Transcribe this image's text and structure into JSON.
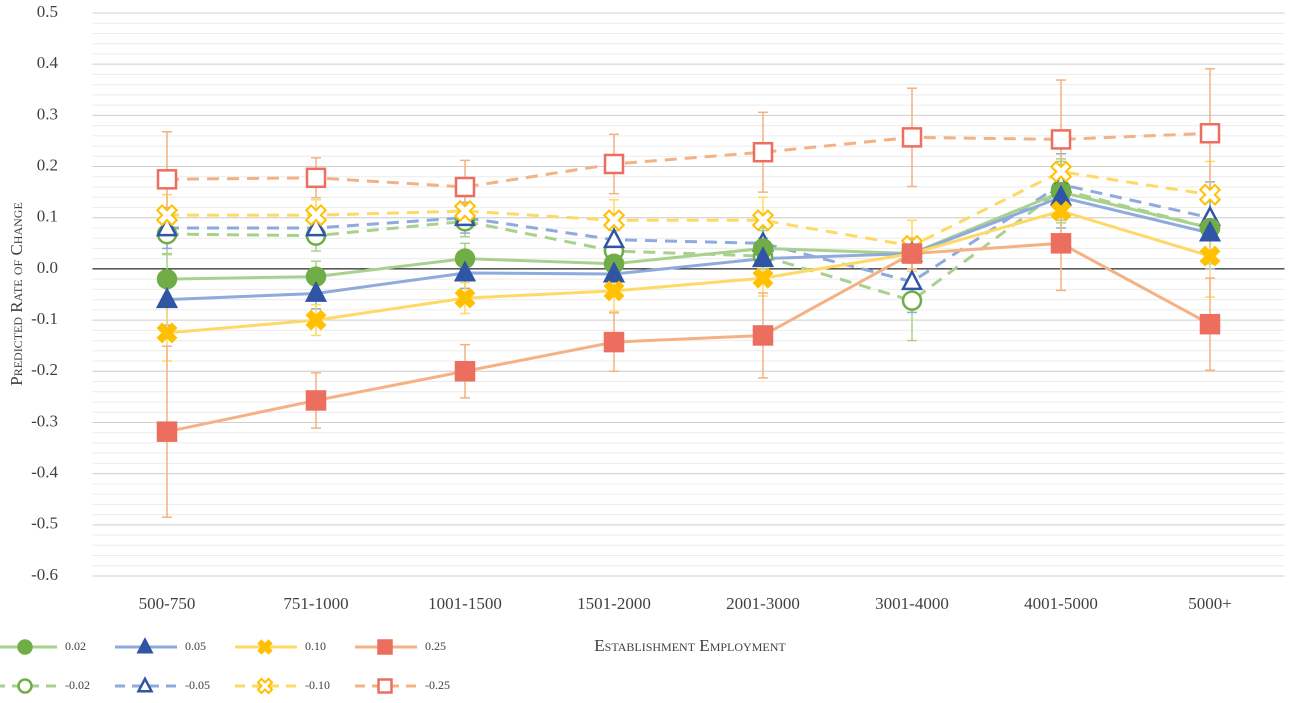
{
  "chart_data": {
    "type": "line",
    "x_label": "Establishment Employment",
    "y_label": "Predicted Rate of Change",
    "categories": [
      "500-750",
      "751-1000",
      "1001-1500",
      "1501-2000",
      "2001-3000",
      "3001-4000",
      "4001-5000",
      "5000+"
    ],
    "ylim": [
      -0.6,
      0.5
    ],
    "yticks": [
      0.5,
      0.4,
      0.3,
      0.2,
      0.1,
      {
        "value": 0,
        "label": "0.0"
      },
      -0.1,
      -0.2,
      -0.3,
      -0.4,
      -0.5,
      -0.6
    ],
    "grid": true,
    "minor_grid": true,
    "legend": "bottom-left",
    "series": [
      {
        "name": "-0.02",
        "color": "#70ad47",
        "line_color": "#a9d18e",
        "marker": "circle",
        "filled": false,
        "dashed": true,
        "values": [
          0.068,
          0.065,
          0.093,
          0.035,
          0.025,
          -0.062,
          0.155,
          0.08
        ],
        "errors": [
          0.04,
          0.03,
          0.03,
          0.04,
          0.05,
          0.078,
          0.06,
          0.07
        ]
      },
      {
        "name": "-0.05",
        "color": "#2f55a4",
        "line_color": "#8faadc",
        "marker": "triangle",
        "filled": false,
        "dashed": true,
        "values": [
          0.08,
          0.08,
          0.1,
          0.057,
          0.05,
          -0.025,
          0.165,
          0.1
        ],
        "errors": [
          0.04,
          0.03,
          0.03,
          0.04,
          0.05,
          0.06,
          0.06,
          0.07
        ]
      },
      {
        "name": "-0.10",
        "color": "#ffc000",
        "line_color": "#ffd966",
        "marker": "x",
        "filled": false,
        "dashed": true,
        "values": [
          0.105,
          0.105,
          0.113,
          0.095,
          0.095,
          0.045,
          0.19,
          0.145
        ],
        "errors": [
          0.04,
          0.03,
          0.03,
          0.04,
          0.045,
          0.05,
          0.06,
          0.065
        ]
      },
      {
        "name": "-0.25",
        "color": "#ec6e5f",
        "line_color": "#f4b183",
        "marker": "square",
        "filled": false,
        "dashed": true,
        "values": [
          0.175,
          0.178,
          0.16,
          0.205,
          0.228,
          0.257,
          0.253,
          0.265
        ],
        "errors": [
          0.093,
          0.039,
          0.052,
          0.058,
          0.078,
          0.096,
          0.116,
          0.126
        ]
      },
      {
        "name": "0.02",
        "color": "#70ad47",
        "line_color": "#a9d18e",
        "marker": "circle",
        "filled": true,
        "dashed": false,
        "values": [
          -0.02,
          -0.015,
          0.02,
          0.01,
          0.04,
          0.03,
          0.15,
          0.08
        ],
        "errors": [
          0.05,
          0.03,
          0.03,
          0.035,
          0.04,
          0.03,
          0.06,
          0.07
        ]
      },
      {
        "name": "0.05",
        "color": "#2f55a4",
        "line_color": "#8faadc",
        "marker": "triangle",
        "filled": true,
        "dashed": false,
        "values": [
          -0.06,
          -0.048,
          -0.008,
          -0.01,
          0.02,
          0.03,
          0.14,
          0.07
        ],
        "errors": [
          0.05,
          0.03,
          0.03,
          0.035,
          0.04,
          0.03,
          0.06,
          0.07
        ]
      },
      {
        "name": "0.10",
        "color": "#ffc000",
        "line_color": "#ffd966",
        "marker": "x",
        "filled": true,
        "dashed": false,
        "values": [
          -0.125,
          -0.1,
          -0.057,
          -0.043,
          -0.018,
          0.03,
          0.113,
          0.025
        ],
        "errors": [
          0.055,
          0.03,
          0.03,
          0.04,
          0.035,
          0.03,
          0.06,
          0.08
        ]
      },
      {
        "name": "0.25",
        "color": "#ec6e5f",
        "line_color": "#f4b183",
        "marker": "square",
        "filled": true,
        "dashed": false,
        "values": [
          -0.318,
          -0.257,
          -0.2,
          -0.143,
          -0.13,
          0.03,
          0.05,
          -0.108
        ],
        "errors": [
          0.167,
          0.054,
          0.052,
          0.057,
          0.083,
          0.03,
          0.092,
          0.09
        ]
      }
    ]
  }
}
